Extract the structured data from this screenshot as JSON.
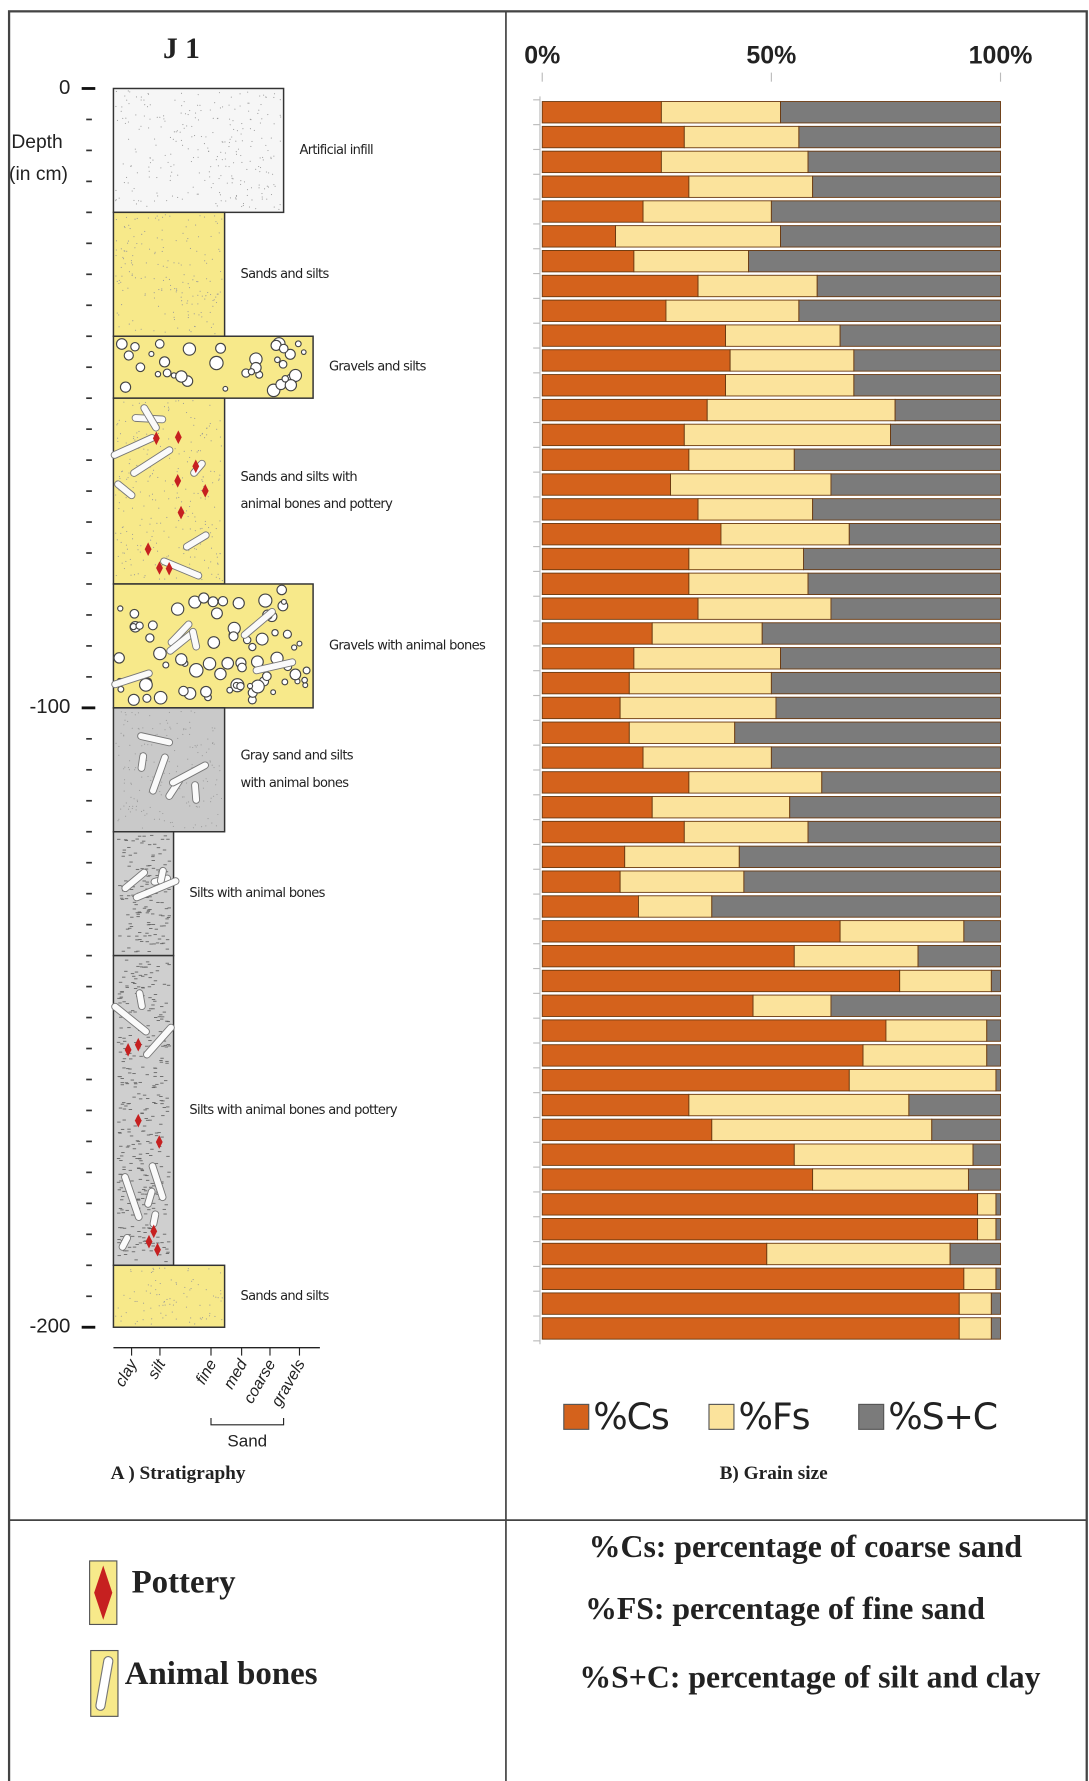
{
  "stratigraphy": {
    "title": "J 1",
    "caption": "A ) Stratigraphy",
    "y_label": [
      "Depth",
      "(in cm)"
    ],
    "ylim": [
      0,
      -200
    ],
    "yticks": [
      0,
      -100,
      -200
    ],
    "x_categories": [
      "clay",
      "silt",
      "fine",
      "med",
      "coarse",
      "gravels"
    ],
    "sand_label": "Sand",
    "layers": [
      {
        "label": [
          "Artificial infill"
        ],
        "top": 0,
        "bottom": -20,
        "grain": "coarse",
        "color": "#f6f6f6"
      },
      {
        "label": [
          "Sands and silts"
        ],
        "top": -20,
        "bottom": -40,
        "grain": "fine",
        "color": "#f7e98a"
      },
      {
        "label": [
          "Gravels and silts"
        ],
        "top": -40,
        "bottom": -50,
        "grain": "gravels",
        "color": "#f7e98a"
      },
      {
        "label": [
          "Sands and silts with",
          "animal bones and pottery"
        ],
        "top": -50,
        "bottom": -80,
        "grain": "fine",
        "color": "#f7e98a"
      },
      {
        "label": [
          "Gravels with animal bones"
        ],
        "top": -80,
        "bottom": -100,
        "grain": "gravels",
        "color": "#f7e98a"
      },
      {
        "label": [
          "Gray sand and silts",
          "with animal bones"
        ],
        "top": -100,
        "bottom": -120,
        "grain": "fine",
        "color": "#c9c9c9"
      },
      {
        "label": [
          "Silts with animal bones"
        ],
        "top": -120,
        "bottom": -140,
        "grain": "silt",
        "color": "#cfcfcf"
      },
      {
        "label": [
          "Silts with animal bones and pottery"
        ],
        "top": -140,
        "bottom": -190,
        "grain": "silt",
        "color": "#cfcfcf"
      },
      {
        "label": [
          "Sands and silts"
        ],
        "top": -190,
        "bottom": -200,
        "grain": "fine",
        "color": "#f7e98a"
      }
    ]
  },
  "chart_data": {
    "type": "stacked_bar_horizontal",
    "x_label": "B) Grain size",
    "xlim": [
      0,
      100
    ],
    "xticks": [
      {
        "value": 0,
        "label": "0%"
      },
      {
        "value": 50,
        "label": "50%"
      },
      {
        "value": 100,
        "label": "100%"
      }
    ],
    "series": [
      {
        "name": "%Cs",
        "color": "#d4621c",
        "values": [
          26,
          31,
          26,
          32,
          22,
          16,
          20,
          34,
          27,
          40,
          41,
          40,
          36,
          31,
          32,
          28,
          34,
          39,
          32,
          32,
          34,
          24,
          20,
          19,
          17,
          19,
          22,
          32,
          24,
          31,
          18,
          17,
          21,
          65,
          55,
          78,
          46,
          75,
          70,
          67,
          32,
          37,
          55,
          59,
          95,
          95,
          49,
          92,
          91,
          91
        ]
      },
      {
        "name": "%Fs",
        "color": "#fbe39c",
        "values": [
          26,
          25,
          32,
          27,
          28,
          36,
          25,
          26,
          29,
          25,
          27,
          28,
          41,
          45,
          23,
          35,
          25,
          28,
          25,
          26,
          29,
          24,
          32,
          31,
          34,
          23,
          28,
          29,
          30,
          27,
          25,
          27,
          16,
          27,
          27,
          20,
          17,
          22,
          27,
          32,
          48,
          48,
          39,
          34,
          4,
          4,
          40,
          7,
          7,
          7
        ]
      },
      {
        "name": "%S+C",
        "color": "#7b7b7b",
        "values": [
          48,
          44,
          42,
          41,
          50,
          48,
          55,
          40,
          44,
          35,
          32,
          32,
          23,
          24,
          45,
          37,
          41,
          33,
          43,
          42,
          37,
          52,
          48,
          50,
          49,
          58,
          50,
          39,
          46,
          42,
          57,
          56,
          63,
          8,
          18,
          2,
          37,
          3,
          3,
          1,
          20,
          15,
          6,
          7,
          1,
          1,
          11,
          1,
          2,
          2
        ]
      }
    ]
  },
  "legend": {
    "pottery": "Pottery",
    "bones": "Animal bones"
  },
  "definitions": [
    "%Cs: percentage of coarse sand",
    "%FS: percentage of fine sand",
    "%S+C: percentage of silt and clay"
  ]
}
